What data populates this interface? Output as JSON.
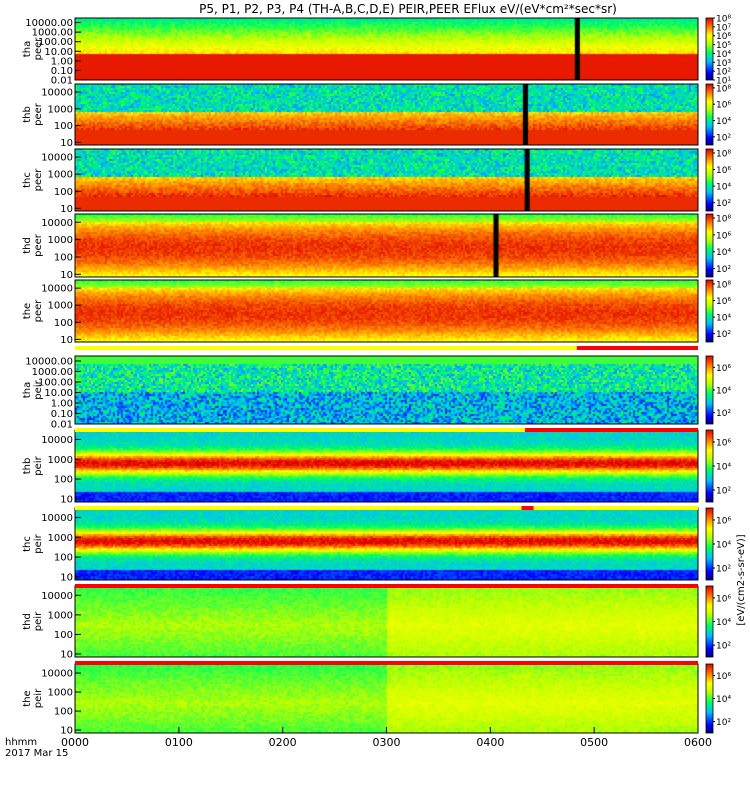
{
  "chart_data": {
    "type": "heatmap",
    "title": "P5, P1, P2, P3, P4 (TH-A,B,C,D,E) PEIR,PEER EFlux eV/(eV*cm²*sec*sr)",
    "x_axis": {
      "label": "hhmm",
      "date_label": "2017 Mar 15",
      "ticks": [
        "0000",
        "0100",
        "0200",
        "0300",
        "0400",
        "0500",
        "0600"
      ],
      "range": [
        "00:00",
        "06:00"
      ]
    },
    "colorbar_label": "[eV/(cm2-s-sr-eV)]",
    "panels": [
      {
        "probe": "tha",
        "species": "peer",
        "y_ticks": [
          "10000.00",
          "1000.00",
          "100.00",
          "10.00",
          "1.00",
          "0.10",
          "0.01"
        ],
        "y_range": [
          0.01,
          30000
        ],
        "y_scale": "log",
        "colorbar_ticks": [
          "10⁸",
          "10⁷",
          "10⁶",
          "10⁵",
          "10⁴",
          "10³",
          "10²",
          "10¹"
        ],
        "colorbar_range": [
          10,
          100000000
        ]
      },
      {
        "probe": "thb",
        "species": "peer",
        "y_ticks": [
          "10000",
          "1000",
          "100",
          "10"
        ],
        "y_range": [
          7,
          30000
        ],
        "y_scale": "log",
        "colorbar_ticks": [
          "10⁸",
          "10⁶",
          "10⁴",
          "10²"
        ],
        "colorbar_range": [
          10,
          300000000
        ]
      },
      {
        "probe": "thc",
        "species": "peer",
        "y_ticks": [
          "10000",
          "1000",
          "100",
          "10"
        ],
        "y_range": [
          7,
          30000
        ],
        "y_scale": "log",
        "colorbar_ticks": [
          "10⁸",
          "10⁶",
          "10⁴",
          "10²"
        ],
        "colorbar_range": [
          10,
          300000000
        ]
      },
      {
        "probe": "thd",
        "species": "peer",
        "y_ticks": [
          "10000",
          "1000",
          "100",
          "10"
        ],
        "y_range": [
          7,
          30000
        ],
        "y_scale": "log",
        "colorbar_ticks": [
          "10⁸",
          "10⁶",
          "10⁴",
          "10²"
        ],
        "colorbar_range": [
          10,
          300000000
        ]
      },
      {
        "probe": "the",
        "species": "peer",
        "y_ticks": [
          "10000",
          "1000",
          "100",
          "10"
        ],
        "y_range": [
          7,
          30000
        ],
        "y_scale": "log",
        "colorbar_ticks": [
          "10⁸",
          "10⁶",
          "10⁴",
          "10²"
        ],
        "colorbar_range": [
          10,
          300000000
        ]
      },
      {
        "probe": "tha",
        "species": "peir",
        "y_ticks": [
          "10000.00",
          "1000.00",
          "100.00",
          "10.00",
          "1.00",
          "0.10",
          "0.01"
        ],
        "y_range": [
          0.01,
          30000
        ],
        "y_scale": "log",
        "colorbar_ticks": [
          "10⁶",
          "10⁴",
          "10²"
        ],
        "colorbar_range": [
          10,
          10000000
        ]
      },
      {
        "probe": "thb",
        "species": "peir",
        "y_ticks": [
          "10000",
          "1000",
          "100",
          "10"
        ],
        "y_range": [
          7,
          30000
        ],
        "y_scale": "log",
        "colorbar_ticks": [
          "10⁶",
          "10⁴",
          "10²"
        ],
        "colorbar_range": [
          10,
          10000000
        ]
      },
      {
        "probe": "thc",
        "species": "peir",
        "y_ticks": [
          "10000",
          "1000",
          "100",
          "10"
        ],
        "y_range": [
          7,
          30000
        ],
        "y_scale": "log",
        "colorbar_ticks": [
          "10⁶",
          "10⁴",
          "10²"
        ],
        "colorbar_range": [
          10,
          10000000
        ]
      },
      {
        "probe": "thd",
        "species": "peir",
        "y_ticks": [
          "10000",
          "1000",
          "100",
          "10"
        ],
        "y_range": [
          7,
          30000
        ],
        "y_scale": "log",
        "colorbar_ticks": [
          "10⁶",
          "10⁴",
          "10²"
        ],
        "colorbar_range": [
          10,
          10000000
        ]
      },
      {
        "probe": "the",
        "species": "peir",
        "y_ticks": [
          "10000",
          "1000",
          "100",
          "10"
        ],
        "y_range": [
          7,
          30000
        ],
        "y_scale": "log",
        "colorbar_ticks": [
          "10⁶",
          "10⁴",
          "10²"
        ],
        "colorbar_range": [
          10,
          10000000
        ]
      }
    ],
    "bars": [
      {
        "after_panel": 4,
        "segments": [
          {
            "from": "00:00",
            "to": "04:50",
            "color": "#ffff00"
          },
          {
            "from": "04:50",
            "to": "06:00",
            "color": "#ff0000"
          }
        ]
      },
      {
        "after_panel": 5,
        "segments": [
          {
            "from": "00:00",
            "to": "04:20",
            "color": "#ffff00"
          },
          {
            "from": "04:20",
            "to": "06:00",
            "color": "#ff0000"
          }
        ]
      },
      {
        "after_panel": 6,
        "segments": [
          {
            "from": "00:00",
            "to": "04:18",
            "color": "#ffff00"
          },
          {
            "from": "04:18",
            "to": "04:25",
            "color": "#ff0000"
          },
          {
            "from": "04:25",
            "to": "06:00",
            "color": "#ffff00"
          }
        ]
      },
      {
        "after_panel": 7,
        "segments": [
          {
            "from": "00:00",
            "to": "06:00",
            "color": "#ff0000"
          }
        ]
      },
      {
        "after_panel": 8,
        "segments": [
          {
            "from": "00:00",
            "to": "06:00",
            "color": "#ff0000"
          }
        ]
      }
    ],
    "gaps": [
      {
        "panel": 0,
        "time": "04:50"
      },
      {
        "panel": 1,
        "time": "04:20"
      },
      {
        "panel": 2,
        "time": "04:21"
      },
      {
        "panel": 3,
        "time": "04:03"
      }
    ]
  }
}
